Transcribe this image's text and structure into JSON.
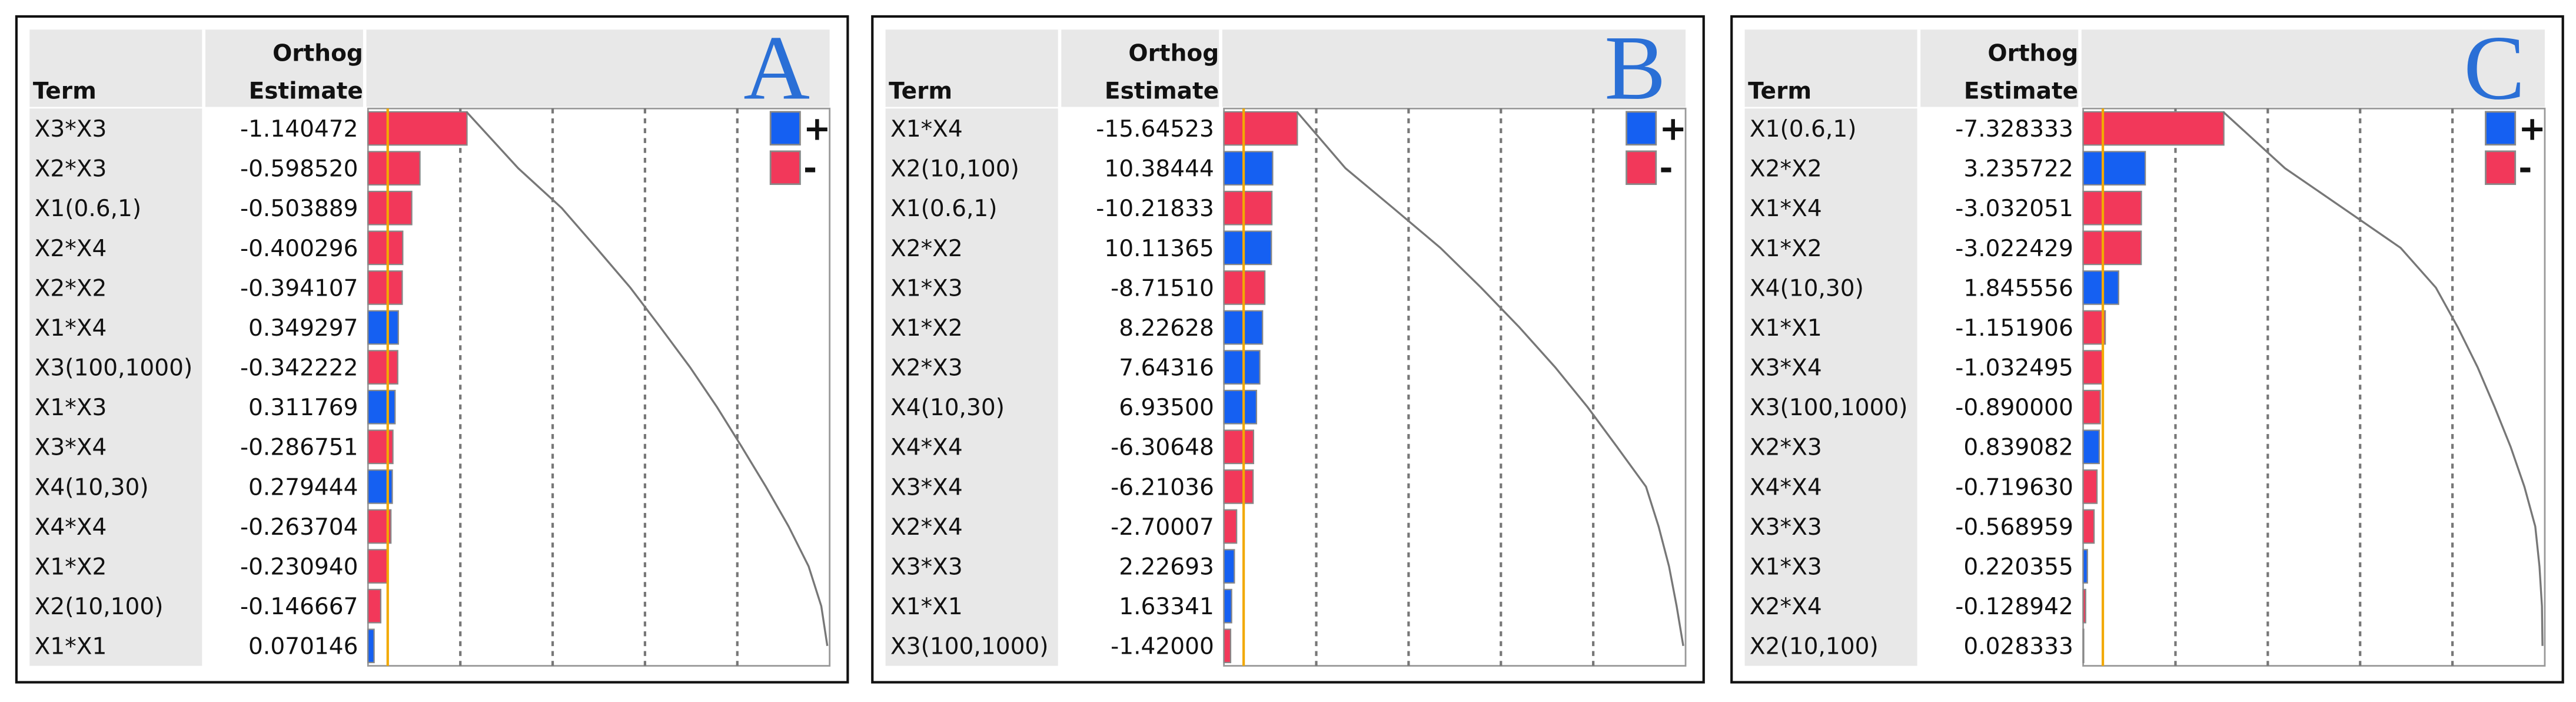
{
  "chart_data": [
    {
      "type": "pareto",
      "label": "A",
      "term_header": "Term",
      "estimate_header": [
        "Orthog",
        "Estimate"
      ],
      "legend": [
        {
          "label": "+",
          "color": "#1560f2"
        },
        {
          "label": "-",
          "color": "#f2385a"
        }
      ],
      "categories": [
        "X3*X3",
        "X2*X3",
        "X1(0.6,1)",
        "X2*X4",
        "X2*X2",
        "X1*X4",
        "X3(100,1000)",
        "X1*X3",
        "X3*X4",
        "X4(10,30)",
        "X4*X4",
        "X1*X2",
        "X2(10,100)",
        "X1*X1"
      ],
      "values": [
        -1.140472,
        -0.59852,
        -0.503889,
        -0.400296,
        -0.394107,
        0.349297,
        -0.342222,
        0.311769,
        -0.286751,
        0.279444,
        -0.263704,
        -0.23094,
        -0.146667,
        0.070146
      ],
      "value_labels": [
        "-1.140472",
        "-0.598520",
        "-0.503889",
        "-0.400296",
        "-0.394107",
        "0.349297",
        "-0.342222",
        "0.311769",
        "-0.286751",
        "0.279444",
        "-0.263704",
        "-0.230940",
        "-0.146667",
        "0.070146"
      ]
    },
    {
      "type": "pareto",
      "label": "B",
      "term_header": "Term",
      "estimate_header": [
        "Orthog",
        "Estimate"
      ],
      "legend": [
        {
          "label": "+",
          "color": "#1560f2"
        },
        {
          "label": "-",
          "color": "#f2385a"
        }
      ],
      "categories": [
        "X1*X4",
        "X2(10,100)",
        "X1(0.6,1)",
        "X2*X2",
        "X1*X3",
        "X1*X2",
        "X2*X3",
        "X4(10,30)",
        "X4*X4",
        "X3*X4",
        "X2*X4",
        "X3*X3",
        "X1*X1",
        "X3(100,1000)"
      ],
      "values": [
        -15.64523,
        10.38444,
        -10.21833,
        10.11365,
        -8.7151,
        8.22628,
        7.64316,
        6.935,
        -6.30648,
        -6.21036,
        -2.70007,
        2.22693,
        1.63341,
        -1.42
      ],
      "value_labels": [
        "-15.64523",
        "10.38444",
        "-10.21833",
        "10.11365",
        "-8.71510",
        "8.22628",
        "7.64316",
        "6.93500",
        "-6.30648",
        "-6.21036",
        "-2.70007",
        "2.22693",
        "1.63341",
        "-1.42000"
      ]
    },
    {
      "type": "pareto",
      "label": "C",
      "term_header": "Term",
      "estimate_header": [
        "Orthog",
        "Estimate"
      ],
      "legend": [
        {
          "label": "+",
          "color": "#1560f2"
        },
        {
          "label": "-",
          "color": "#f2385a"
        }
      ],
      "categories": [
        "X1(0.6,1)",
        "X2*X2",
        "X1*X4",
        "X1*X2",
        "X4(10,30)",
        "X1*X1",
        "X3*X4",
        "X3(100,1000)",
        "X2*X3",
        "X4*X4",
        "X3*X3",
        "X1*X3",
        "X2*X4",
        "X2(10,100)"
      ],
      "values": [
        -7.328333,
        3.235722,
        -3.032051,
        -3.022429,
        1.845556,
        -1.151906,
        -1.032495,
        -0.89,
        0.839082,
        -0.71963,
        -0.568959,
        0.220355,
        -0.128942,
        0.028333
      ],
      "value_labels": [
        "-7.328333",
        "3.235722",
        "-3.032051",
        "-3.022429",
        "1.845556",
        "-1.151906",
        "-1.032495",
        "-0.890000",
        "0.839082",
        "-0.719630",
        "-0.568959",
        "0.220355",
        "-0.128942",
        "0.028333"
      ]
    }
  ]
}
